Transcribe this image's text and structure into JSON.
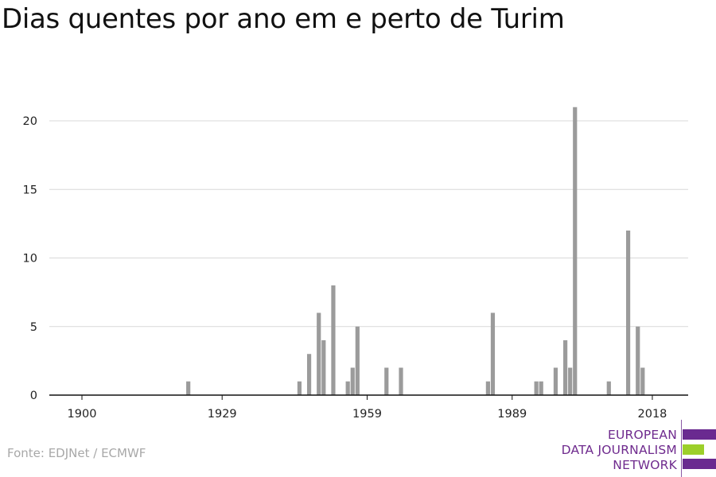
{
  "title": "Dias quentes por ano em e perto de Turim",
  "source": "Fonte: EDJNet / ECMWF",
  "logo": {
    "line1": "EUROPEAN",
    "line2": "DATA JOURNALISM",
    "line3": "NETWORK",
    "colors": {
      "purple": "#6a2a90",
      "green": "#9ccf2a"
    }
  },
  "colors": {
    "bar": "#9b9b9b",
    "grid": "#d9d9d9",
    "axis": "#111111",
    "text": "#222222"
  },
  "chart_data": {
    "type": "bar",
    "title": "Dias quentes por ano em e perto de Turim",
    "xlabel": "",
    "ylabel": "",
    "xlim": [
      1900,
      2019
    ],
    "ylim": [
      0,
      21.5
    ],
    "x_ticks": [
      1900,
      1929,
      1959,
      1989,
      2018
    ],
    "y_ticks": [
      0,
      5,
      10,
      15,
      20
    ],
    "grid": true,
    "categories": [
      1922,
      1945,
      1947,
      1949,
      1950,
      1952,
      1955,
      1956,
      1957,
      1963,
      1966,
      1984,
      1985,
      1994,
      1995,
      1998,
      2000,
      2001,
      2002,
      2009,
      2013,
      2015,
      2016
    ],
    "values": [
      1,
      1,
      3,
      6,
      4,
      8,
      1,
      2,
      5,
      2,
      2,
      1,
      6,
      1,
      1,
      2,
      4,
      2,
      21,
      1,
      12,
      5,
      2
    ]
  }
}
